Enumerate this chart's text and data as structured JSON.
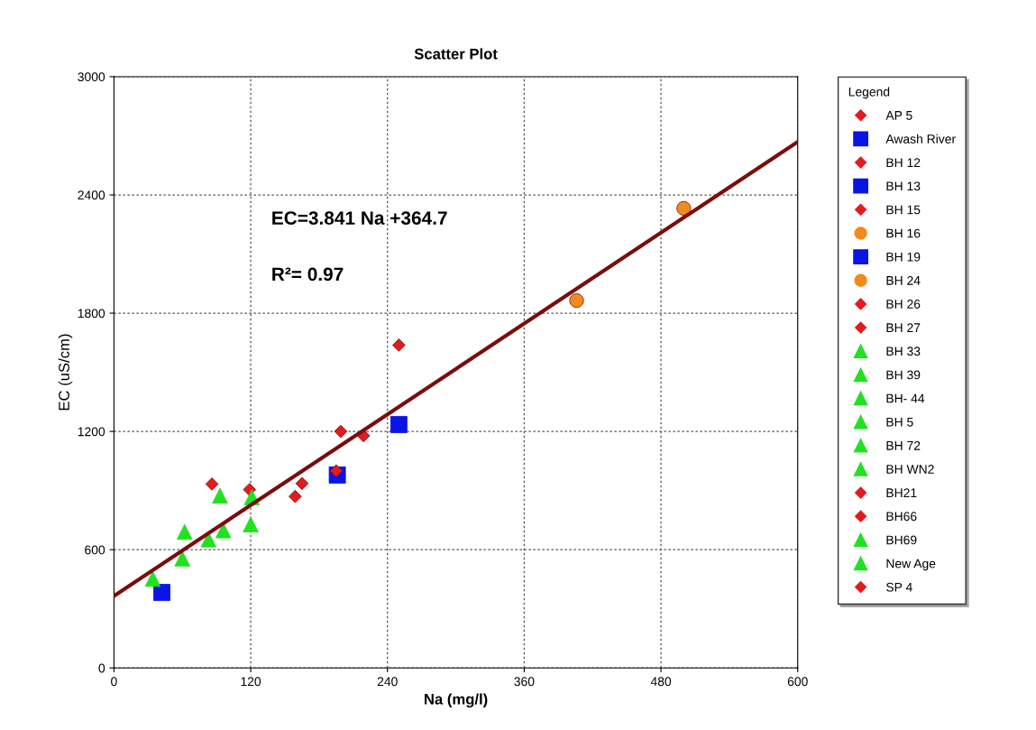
{
  "chart_data": {
    "type": "scatter",
    "title": "Scatter Plot",
    "xlabel": "Na (mg/l)",
    "ylabel": "EC (uS/cm)",
    "xlim": [
      0,
      600
    ],
    "xticks": [
      0,
      120,
      240,
      360,
      480,
      600
    ],
    "ylim": [
      0,
      3000
    ],
    "yticks": [
      0,
      600,
      1200,
      1800,
      2400,
      3000
    ],
    "grid": true,
    "legend": "right",
    "legend_title": "Legend",
    "annotations": [
      "EC=3.841 Na +364.7",
      "R²= 0.97"
    ],
    "series": [
      {
        "name": "AP 5",
        "color": "#e41a1c",
        "marker": "diamond",
        "x": [
          86
        ],
        "values": [
          933
        ]
      },
      {
        "name": "Awash River",
        "color": "#0a14e6",
        "marker": "square",
        "x": [
          42
        ],
        "values": [
          383
        ]
      },
      {
        "name": "BH 12",
        "color": "#e41a1c",
        "marker": "diamond",
        "x": [
          119
        ],
        "values": [
          905
        ]
      },
      {
        "name": "BH 13",
        "color": "#0a14e6",
        "marker": "square",
        "x": [
          196
        ],
        "values": [
          979
        ]
      },
      {
        "name": "BH 15",
        "color": "#e41a1c",
        "marker": "diamond",
        "x": [
          159
        ],
        "values": [
          870
        ]
      },
      {
        "name": "BH 16",
        "color": "#f28a1e",
        "marker": "circle",
        "x": [
          406
        ],
        "values": [
          1864
        ]
      },
      {
        "name": "BH 19",
        "color": "#0a14e6",
        "marker": "square",
        "x": [
          250
        ],
        "values": [
          1235
        ]
      },
      {
        "name": "BH 24",
        "color": "#f28a1e",
        "marker": "circle",
        "x": [
          500
        ],
        "values": [
          2332
        ]
      },
      {
        "name": "BH 26",
        "color": "#e41a1c",
        "marker": "diamond",
        "x": [
          165
        ],
        "values": [
          936
        ]
      },
      {
        "name": "BH 27",
        "color": "#e41a1c",
        "marker": "diamond",
        "x": [
          195
        ],
        "values": [
          1000
        ]
      },
      {
        "name": "BH 33",
        "color": "#22e022",
        "marker": "triangle",
        "x": [
          34
        ],
        "values": [
          452
        ]
      },
      {
        "name": "BH 39",
        "color": "#22e022",
        "marker": "triangle",
        "x": [
          60
        ],
        "values": [
          555
        ]
      },
      {
        "name": "BH- 44",
        "color": "#22e022",
        "marker": "triangle",
        "x": [
          62
        ],
        "values": [
          690
        ]
      },
      {
        "name": "BH 5",
        "color": "#22e022",
        "marker": "triangle",
        "x": [
          83
        ],
        "values": [
          652
        ]
      },
      {
        "name": "BH 72",
        "color": "#22e022",
        "marker": "triangle",
        "x": [
          96
        ],
        "values": [
          698
        ]
      },
      {
        "name": "BH WN2",
        "color": "#22e022",
        "marker": "triangle",
        "x": [
          93
        ],
        "values": [
          874
        ]
      },
      {
        "name": "BH21",
        "color": "#e41a1c",
        "marker": "diamond",
        "x": [
          199
        ],
        "values": [
          1200
        ]
      },
      {
        "name": "BH66",
        "color": "#e41a1c",
        "marker": "diamond",
        "x": [
          250
        ],
        "values": [
          1638
        ]
      },
      {
        "name": "BH69",
        "color": "#22e022",
        "marker": "triangle",
        "x": [
          120
        ],
        "values": [
          728
        ]
      },
      {
        "name": "New Age",
        "color": "#22e022",
        "marker": "triangle",
        "x": [
          121
        ],
        "values": [
          866
        ]
      },
      {
        "name": "SP 4",
        "color": "#e41a1c",
        "marker": "diamond",
        "x": [
          219
        ],
        "values": [
          1178
        ]
      },
      {
        "type": "line",
        "color": "#7b0c0c",
        "marker": "none",
        "x": [
          0,
          600
        ],
        "values": [
          364.7,
          2669.3
        ]
      }
    ]
  }
}
